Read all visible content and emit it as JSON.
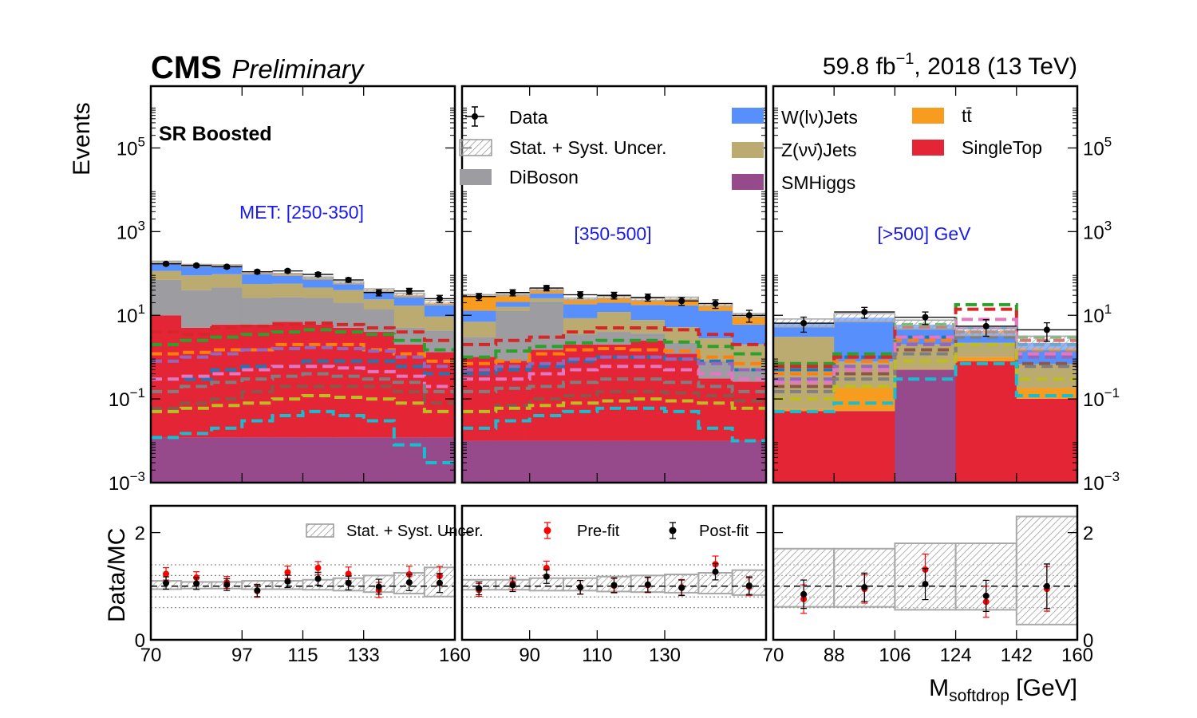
{
  "header": {
    "experiment": "CMS",
    "status": "Preliminary",
    "lumi_prefix": "59.8 fb",
    "lumi_exp": "−1",
    "lumi_suffix": ", 2018 (13 TeV)"
  },
  "region_label": "SR Boosted",
  "colors": {
    "WJets": "#5790fc",
    "ZJets": "#bbab70",
    "SMHiggs": "#964a8b",
    "ttbar": "#f89c20",
    "SingleTop": "#e42536",
    "DiBoson": "#9c9ca1",
    "signal_lines": [
      "#1f77b4",
      "#ff7f0e",
      "#2ca02c",
      "#d62728",
      "#9467bd",
      "#8c564b",
      "#e377c2",
      "#7f7f7f",
      "#bcbd22",
      "#17becf"
    ],
    "prefit": "#ff0000",
    "postfit": "#000000"
  },
  "chart_data": {
    "type": "bar",
    "stacked": true,
    "yscale": "log",
    "ylabel": "Events",
    "ylim": [
      0.001,
      3000000
    ],
    "yticks": [
      {
        "value": 0.001,
        "base": "10",
        "exp": "−3"
      },
      {
        "value": 0.1,
        "base": "10",
        "exp": "−1"
      },
      {
        "value": 10,
        "base": "10",
        "exp": "1"
      },
      {
        "value": 1000,
        "base": "10",
        "exp": "3"
      },
      {
        "value": 100000,
        "base": "10",
        "exp": "5"
      }
    ],
    "xlabel_main": "M",
    "xlabel_sub": "softdrop",
    "xlabel_unit": " [GeV]",
    "legend": {
      "data": "Data",
      "uncertainty": "Stat. + Syst. Uncer.",
      "diboson": "DiBoson",
      "wjets": "W(lν)Jets",
      "zjets": "Z(νν̄)Jets",
      "smhiggs": "SMHiggs",
      "ttbar": "tt̄",
      "singletop": "SingleTop"
    },
    "panels": [
      {
        "region": "MET: [250-350]",
        "xlim": [
          70,
          160
        ],
        "xticks": [
          "70",
          "97",
          "115",
          "133",
          "160"
        ],
        "xtick_values": [
          70,
          97,
          115,
          133,
          160
        ],
        "edges": [
          70,
          79,
          88,
          97,
          106,
          115,
          124,
          133,
          142,
          151,
          160
        ],
        "stack": {
          "SMHiggs": [
            0.012,
            0.012,
            0.012,
            0.012,
            0.012,
            0.012,
            0.012,
            0.012,
            0.012,
            0.012
          ],
          "SingleTop": [
            10,
            5,
            6,
            6,
            7,
            6,
            5,
            4,
            2,
            1.3
          ],
          "DiBoson": [
            60,
            35,
            40,
            20,
            20,
            20,
            15,
            10,
            3,
            3
          ],
          "ZJets": [
            45,
            50,
            50,
            30,
            30,
            20,
            20,
            10,
            12,
            5
          ],
          "WJets": [
            60,
            55,
            50,
            40,
            30,
            25,
            15,
            12,
            10,
            8
          ],
          "ttbar": [
            15,
            15,
            10,
            10,
            10,
            8,
            5,
            4,
            4,
            3
          ]
        },
        "data": [
          170,
          155,
          145,
          110,
          115,
          95,
          70,
          35,
          38,
          25
        ],
        "signals": [
          [
            0.3,
            0.3,
            0.5,
            0.6,
            0.6,
            0.8,
            0.8,
            0.8,
            0.6,
            0.4
          ],
          [
            1.2,
            1.3,
            1.5,
            1.5,
            2,
            2,
            2,
            1.5,
            1.2,
            0.8
          ],
          [
            2,
            2.5,
            3,
            3.5,
            4,
            4.5,
            4,
            3.5,
            2.5,
            1.5
          ],
          [
            4,
            3.5,
            5,
            5.5,
            6,
            6.5,
            6,
            5,
            4,
            2.5
          ],
          [
            0.8,
            1,
            1.2,
            1.5,
            1.6,
            1.7,
            1.6,
            1.4,
            1.0,
            0.6
          ],
          [
            0.06,
            0.08,
            0.1,
            0.15,
            0.2,
            0.2,
            0.2,
            0.2,
            0.15,
            0.08
          ],
          [
            0.3,
            0.35,
            0.4,
            0.5,
            0.6,
            0.6,
            0.55,
            0.45,
            0.35,
            0.2
          ],
          [
            0.15,
            0.2,
            0.25,
            0.3,
            0.35,
            0.4,
            0.35,
            0.3,
            0.25,
            0.15
          ],
          [
            0.05,
            0.06,
            0.07,
            0.08,
            0.1,
            0.12,
            0.11,
            0.1,
            0.08,
            0.05
          ],
          [
            0.012,
            0.015,
            0.02,
            0.03,
            0.04,
            0.05,
            0.04,
            0.03,
            0.008,
            0.003
          ]
        ],
        "ratio": {
          "prefit": [
            1.23,
            1.16,
            1.07,
            0.91,
            1.26,
            1.34,
            1.23,
            0.93,
            1.22,
            1.19
          ],
          "postfit": [
            1.06,
            1.05,
            1.03,
            0.92,
            1.09,
            1.14,
            1.06,
            0.99,
            1.07,
            1.06
          ],
          "unc": [
            0.1,
            0.08,
            0.08,
            0.1,
            0.1,
            0.12,
            0.15,
            0.2,
            0.25,
            0.35
          ]
        }
      },
      {
        "region": "[350-500]",
        "xlim": [
          70,
          160
        ],
        "xticks": [
          "90",
          "110",
          "130"
        ],
        "xtick_values": [
          90,
          110,
          130
        ],
        "edges": [
          70,
          80,
          90,
          100,
          110,
          120,
          130,
          140,
          150,
          160
        ],
        "stack": {
          "SMHiggs": [
            0.01,
            0.01,
            0.01,
            0.01,
            0.01,
            0.01,
            0.01,
            0.01,
            0.01
          ],
          "SingleTop": [
            1.0,
            0.8,
            1.5,
            2,
            2,
            2.5,
            1.2,
            0.3,
            0.25
          ],
          "DiBoson": [
            2,
            12,
            20,
            1.5,
            2,
            1.2,
            1.0,
            0.5,
            0.25
          ],
          "ZJets": [
            4,
            3,
            4,
            5,
            8,
            4,
            3,
            2,
            1.5
          ],
          "WJets": [
            6,
            5,
            8,
            10,
            8,
            10,
            12,
            10,
            4
          ],
          "ttbar": [
            17,
            10,
            8,
            6,
            7,
            6,
            8,
            5,
            4
          ]
        },
        "data": [
          28,
          35,
          45,
          31,
          30,
          27,
          22,
          19,
          10
        ],
        "signals": [
          [
            0.4,
            0.5,
            0.6,
            0.8,
            1,
            1,
            0.9,
            0.8,
            0.5
          ],
          [
            0.7,
            0.8,
            1.2,
            1.5,
            1.6,
            1.5,
            1.4,
            1.0,
            0.7
          ],
          [
            1.0,
            1.4,
            1.8,
            2.2,
            2.5,
            2.5,
            2.3,
            1.8,
            1.2
          ],
          [
            2,
            2.5,
            3,
            4,
            5,
            5,
            4.5,
            3.5,
            2
          ],
          [
            0.5,
            0.6,
            0.7,
            0.9,
            1.0,
            1.0,
            0.9,
            0.7,
            0.5
          ],
          [
            0.05,
            0.07,
            0.1,
            0.12,
            0.15,
            0.15,
            0.14,
            0.12,
            0.09
          ],
          [
            0.3,
            0.3,
            0.4,
            0.5,
            0.6,
            0.6,
            0.5,
            0.4,
            0.3
          ],
          [
            0.15,
            0.18,
            0.2,
            0.25,
            0.3,
            0.3,
            0.25,
            0.2,
            0.15
          ],
          [
            0.05,
            0.06,
            0.07,
            0.08,
            0.09,
            0.1,
            0.09,
            0.08,
            0.06
          ],
          [
            0.02,
            0.03,
            0.04,
            0.05,
            0.06,
            0.06,
            0.05,
            0.02,
            0.01
          ]
        ],
        "ratio": {
          "prefit": [
            0.93,
            1.05,
            1.34,
            0.98,
            1.01,
            1.02,
            0.98,
            1.41,
            0.99
          ],
          "postfit": [
            0.96,
            1.02,
            1.18,
            0.98,
            1.02,
            1.03,
            0.97,
            1.27,
            1.01
          ],
          "unc": [
            0.12,
            0.12,
            0.15,
            0.15,
            0.18,
            0.2,
            0.22,
            0.25,
            0.3
          ]
        }
      },
      {
        "region": "[>500] GeV",
        "xlim": [
          70,
          160
        ],
        "xticks": [
          "70",
          "88",
          "106",
          "124",
          "142",
          "160"
        ],
        "xtick_values": [
          70,
          88,
          106,
          124,
          142,
          160
        ],
        "edges": [
          70,
          88,
          106,
          124,
          142,
          160
        ],
        "stack": {
          "SMHiggs": [
            0.001,
            0.001,
            0.5,
            0.001,
            0.001
          ],
          "SingleTop": [
            0.05,
            0.05,
            0.0001,
            0.8,
            0.1
          ],
          "DiBoson": [
            0.001,
            0.001,
            0.001,
            0.001,
            0.001
          ],
          "ttbar": [
            0.005,
            0.13,
            0.0065,
            0.2,
            0.08
          ],
          "ZJets": [
            3,
            0.6,
            1.5,
            1.2,
            0.5
          ],
          "WJets": [
            3.5,
            8,
            4,
            2,
            1.5
          ]
        },
        "data": [
          6.5,
          12,
          9,
          5.5,
          4.5
        ],
        "signals": [
          [
            0.5,
            1.0,
            3,
            5,
            2
          ],
          [
            0.4,
            0.8,
            2.5,
            4,
            1.5
          ],
          [
            0.7,
            1.2,
            6,
            18,
            3
          ],
          [
            0.6,
            1.0,
            5,
            14,
            2.5
          ],
          [
            0.3,
            0.6,
            2,
            5,
            1
          ],
          [
            0.2,
            0.4,
            1.5,
            4,
            0.7
          ],
          [
            0.25,
            0.5,
            3,
            8,
            1.2
          ],
          [
            0.15,
            0.3,
            1.2,
            3,
            0.6
          ],
          [
            0.1,
            0.2,
            0.8,
            2,
            0.3
          ],
          [
            0.05,
            0.08,
            0.3,
            0.7,
            0.12
          ]
        ],
        "ratio": {
          "prefit": [
            0.76,
            0.95,
            1.31,
            0.71,
            0.95
          ],
          "postfit": [
            0.85,
            0.98,
            1.04,
            0.82,
            1.0
          ],
          "unc": [
            0.7,
            0.7,
            0.8,
            0.8,
            1.3
          ]
        }
      }
    ],
    "ratio_plot": {
      "ylabel": "Data/MC",
      "ylim": [
        0,
        2.5
      ],
      "yticks": [
        "0",
        "2"
      ],
      "legend": {
        "uncertainty": "Stat. + Syst. Uncer.",
        "prefit": "Pre-fit",
        "postfit": "Post-fit"
      }
    }
  }
}
